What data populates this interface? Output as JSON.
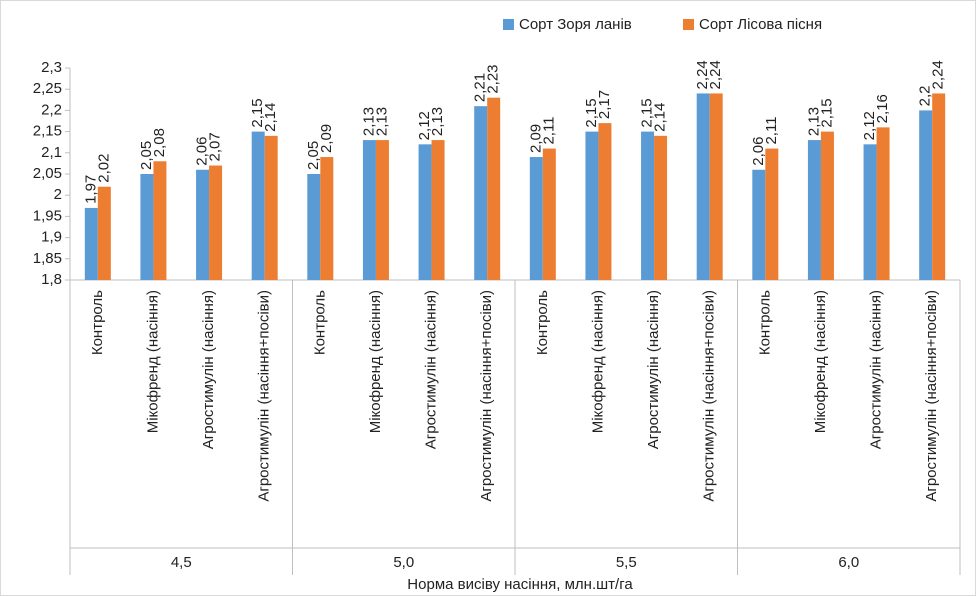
{
  "chart_data": {
    "type": "bar",
    "x_label": "Норма висіву насіння, млн.шт/га",
    "groups": [
      {
        "name": "4,5",
        "categories": [
          "Контроль",
          "Мікофренд (насіння)",
          "Агростимулін (насіння)",
          "Агростимулін (насіння+посіви)"
        ]
      },
      {
        "name": "5,0",
        "categories": [
          "Контроль",
          "Мікофренд (насіння)",
          "Агростимулін (насіння)",
          "Агростимулін (насіння+посіви)"
        ]
      },
      {
        "name": "5,5",
        "categories": [
          "Контроль",
          "Мікофренд (насіння)",
          "Агростимулін (насіння)",
          "Агростимулін (насіння+посіви)"
        ]
      },
      {
        "name": "6,0",
        "categories": [
          "Контроль",
          "Мікофренд (насіння)",
          "Агростимулін (насіння)",
          "Агростимулін (насіння+посіви)"
        ]
      }
    ],
    "series": [
      {
        "name": "Сорт Зоря ланів",
        "color": "#5b9bd5",
        "values": [
          1.97,
          2.05,
          2.06,
          2.15,
          2.05,
          2.13,
          2.12,
          2.21,
          2.09,
          2.15,
          2.15,
          2.24,
          2.06,
          2.13,
          2.12,
          2.2
        ],
        "value_labels": [
          "1,97",
          "2,05",
          "2,06",
          "2,15",
          "2,05",
          "2,13",
          "2,12",
          "2,21",
          "2,09",
          "2,15",
          "2,15",
          "2,24",
          "2,06",
          "2,13",
          "2,12",
          "2,2"
        ]
      },
      {
        "name": "Сорт Лісова пісня",
        "color": "#ed7d31",
        "values": [
          2.02,
          2.08,
          2.07,
          2.14,
          2.09,
          2.13,
          2.13,
          2.23,
          2.11,
          2.17,
          2.14,
          2.24,
          2.11,
          2.15,
          2.16,
          2.24
        ],
        "value_labels": [
          "2,02",
          "2,08",
          "2,07",
          "2,14",
          "2,09",
          "2,13",
          "2,13",
          "2,23",
          "2,11",
          "2,17",
          "2,14",
          "2,24",
          "2,11",
          "2,15",
          "2,16",
          "2,24"
        ]
      }
    ],
    "ylim": [
      1.8,
      2.3
    ],
    "yticks": [
      {
        "value": 1.8,
        "label": "1,8"
      },
      {
        "value": 1.85,
        "label": "1,85"
      },
      {
        "value": 1.9,
        "label": "1,9"
      },
      {
        "value": 1.95,
        "label": "1,95"
      },
      2,
      {
        "value": 2.05,
        "label": "2,05"
      },
      {
        "value": 2.1,
        "label": "2,1"
      },
      {
        "value": 2.15,
        "label": "2,15"
      },
      {
        "value": 2.2,
        "label": "2,2"
      },
      {
        "value": 2.25,
        "label": "2,25"
      },
      {
        "value": 2.3,
        "label": "2,3"
      }
    ],
    "legend": "top"
  }
}
